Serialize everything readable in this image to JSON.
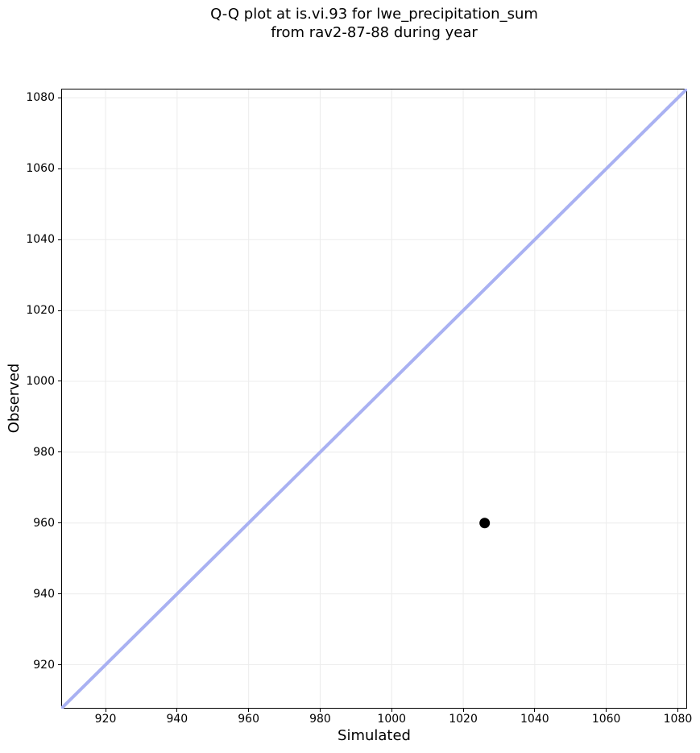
{
  "figure": {
    "title_line1": "Q-Q plot at is.vi.93 for lwe_precipitation_sum",
    "title_line2": "from rav2-87-88 during year"
  },
  "chart_data": {
    "type": "scatter",
    "title": "Q-Q plot at is.vi.93 for lwe_precipitation_sum\nfrom rav2-87-88 during year",
    "xlabel": "Simulated",
    "ylabel": "Observed",
    "xlim": [
      907.6,
      1082.6
    ],
    "ylim": [
      907.6,
      1082.6
    ],
    "xticks": [
      920,
      940,
      960,
      980,
      1000,
      1020,
      1040,
      1060,
      1080
    ],
    "yticks": [
      920,
      940,
      960,
      980,
      1000,
      1020,
      1040,
      1060,
      1080
    ],
    "grid": true,
    "legend": false,
    "grid_color": "#ececec",
    "spine_color": "#000000",
    "series": [
      {
        "name": "identity-line",
        "kind": "line",
        "points": [
          {
            "x": 907.6,
            "y": 907.6
          },
          {
            "x": 1082.6,
            "y": 1082.6
          }
        ],
        "color": "#a9b1f2",
        "width": 4
      },
      {
        "name": "observed-vs-simulated",
        "kind": "scatter",
        "points": [
          {
            "x": 1026,
            "y": 960
          }
        ],
        "color": "#000000",
        "marker_radius": 6.5
      }
    ]
  }
}
